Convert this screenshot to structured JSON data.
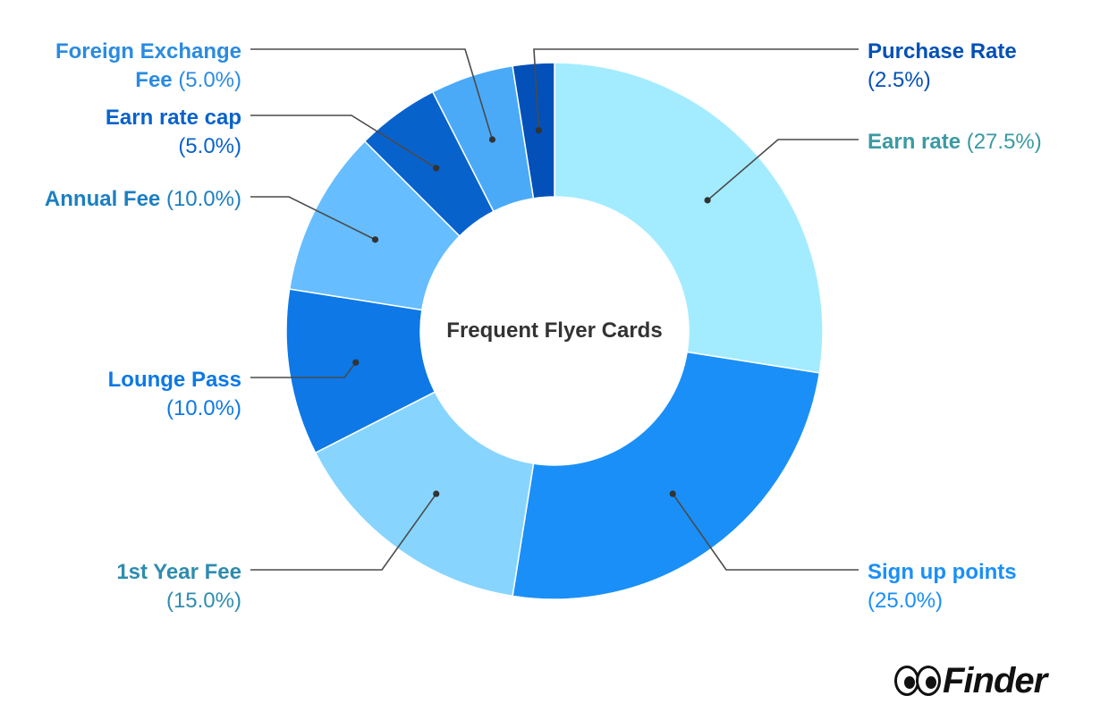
{
  "chart_data": {
    "type": "pie",
    "donut": true,
    "center_label": "Frequent Flyer Cards",
    "series": [
      {
        "name": "Earn rate",
        "value": 27.5,
        "pct_label": "(27.5%)",
        "color": "#a3ecff",
        "label_color": "#3a9aa3"
      },
      {
        "name": "Sign up points",
        "value": 25.0,
        "pct_label": "(25.0%)",
        "color": "#1a8ff7",
        "label_color": "#1a8ff7"
      },
      {
        "name": "1st Year Fee",
        "value": 15.0,
        "pct_label": "(15.0%)",
        "color": "#87d5ff",
        "label_color": "#2f8cae"
      },
      {
        "name": "Lounge Pass",
        "value": 10.0,
        "pct_label": "(10.0%)",
        "color": "#0d78e6",
        "label_color": "#0d78e6"
      },
      {
        "name": "Annual Fee",
        "value": 10.0,
        "pct_label": "(10.0%)",
        "color": "#66bdff",
        "label_color": "#1b7fc2"
      },
      {
        "name": "Earn rate cap",
        "value": 5.0,
        "pct_label": "(5.0%)",
        "color": "#0862cc",
        "label_color": "#0862cc"
      },
      {
        "name": "Foreign Exchange Fee",
        "value": 5.0,
        "pct_label": "(5.0%)",
        "color": "#4aaaf8",
        "label_color": "#2a8be0"
      },
      {
        "name": "Purchase Rate",
        "value": 2.5,
        "pct_label": "(2.5%)",
        "color": "#0350b8",
        "label_color": "#0350b8"
      }
    ]
  },
  "brand": {
    "logo_text": "Finder"
  }
}
